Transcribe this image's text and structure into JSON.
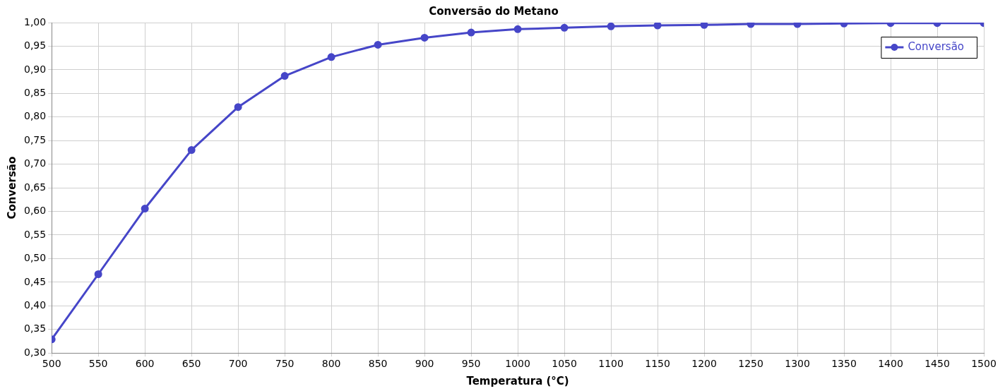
{
  "chart_data": {
    "type": "line",
    "title": "Conversão do Metano",
    "xlabel": "Temperatura (°C)",
    "ylabel": "Conversão",
    "x": [
      500,
      550,
      600,
      650,
      700,
      750,
      800,
      850,
      900,
      950,
      1000,
      1050,
      1100,
      1150,
      1200,
      1250,
      1300,
      1350,
      1400,
      1450,
      1500
    ],
    "series": [
      {
        "name": "Conversão",
        "color": "#4646c8",
        "values": [
          0.329,
          0.467,
          0.606,
          0.73,
          0.821,
          0.887,
          0.927,
          0.953,
          0.968,
          0.979,
          0.986,
          0.989,
          0.992,
          0.994,
          0.995,
          0.997,
          0.997,
          0.998,
          0.999,
          0.999,
          0.999
        ]
      }
    ],
    "xlim": [
      500,
      1500
    ],
    "xticks": [
      500,
      550,
      600,
      650,
      700,
      750,
      800,
      850,
      900,
      950,
      1000,
      1050,
      1100,
      1150,
      1200,
      1250,
      1300,
      1350,
      1400,
      1450,
      1500
    ],
    "ylim": [
      0.3,
      1.0
    ],
    "yticks": [
      {
        "value": 0.3,
        "label": "0,30"
      },
      {
        "value": 0.35,
        "label": "0,35"
      },
      {
        "value": 0.4,
        "label": "0,40"
      },
      {
        "value": 0.45,
        "label": "0,45"
      },
      {
        "value": 0.5,
        "label": "0,50"
      },
      {
        "value": 0.55,
        "label": "0,55"
      },
      {
        "value": 0.6,
        "label": "0,60"
      },
      {
        "value": 0.65,
        "label": "0,65"
      },
      {
        "value": 0.7,
        "label": "0,70"
      },
      {
        "value": 0.75,
        "label": "0,75"
      },
      {
        "value": 0.8,
        "label": "0,80"
      },
      {
        "value": 0.85,
        "label": "0,85"
      },
      {
        "value": 0.9,
        "label": "0,90"
      },
      {
        "value": 0.95,
        "label": "0,95"
      },
      {
        "value": 1.0,
        "label": "1,00"
      }
    ],
    "grid": true,
    "legend": "top right",
    "marker": "circle",
    "line_style": "solid"
  }
}
